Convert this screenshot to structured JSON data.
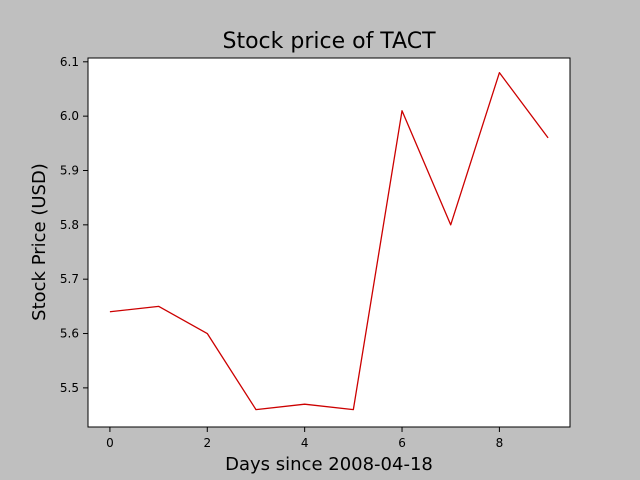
{
  "chart_data": {
    "type": "line",
    "title": "Stock price of TACT",
    "xlabel": "Days since 2008-04-18",
    "ylabel": "Stock Price (USD)",
    "xlim": [
      -0.45,
      9.45
    ],
    "ylim": [
      5.428,
      6.107
    ],
    "x_ticks": [
      0,
      2,
      4,
      6,
      8
    ],
    "y_ticks": [
      5.5,
      5.6,
      5.7,
      5.8,
      5.9,
      6.0,
      6.1
    ],
    "x_tick_labels": [
      "0",
      "2",
      "4",
      "6",
      "8"
    ],
    "y_tick_labels": [
      "5.5",
      "5.6",
      "5.7",
      "5.8",
      "5.9",
      "6.0",
      "6.1"
    ],
    "grid": false,
    "legend": "none",
    "series": [
      {
        "color": "#cc0000",
        "x": [
          0,
          1,
          2,
          3,
          4,
          5,
          6,
          7,
          8,
          9
        ],
        "y": [
          5.64,
          5.65,
          5.6,
          5.46,
          5.47,
          5.46,
          6.01,
          5.8,
          6.08,
          5.96
        ]
      }
    ]
  }
}
